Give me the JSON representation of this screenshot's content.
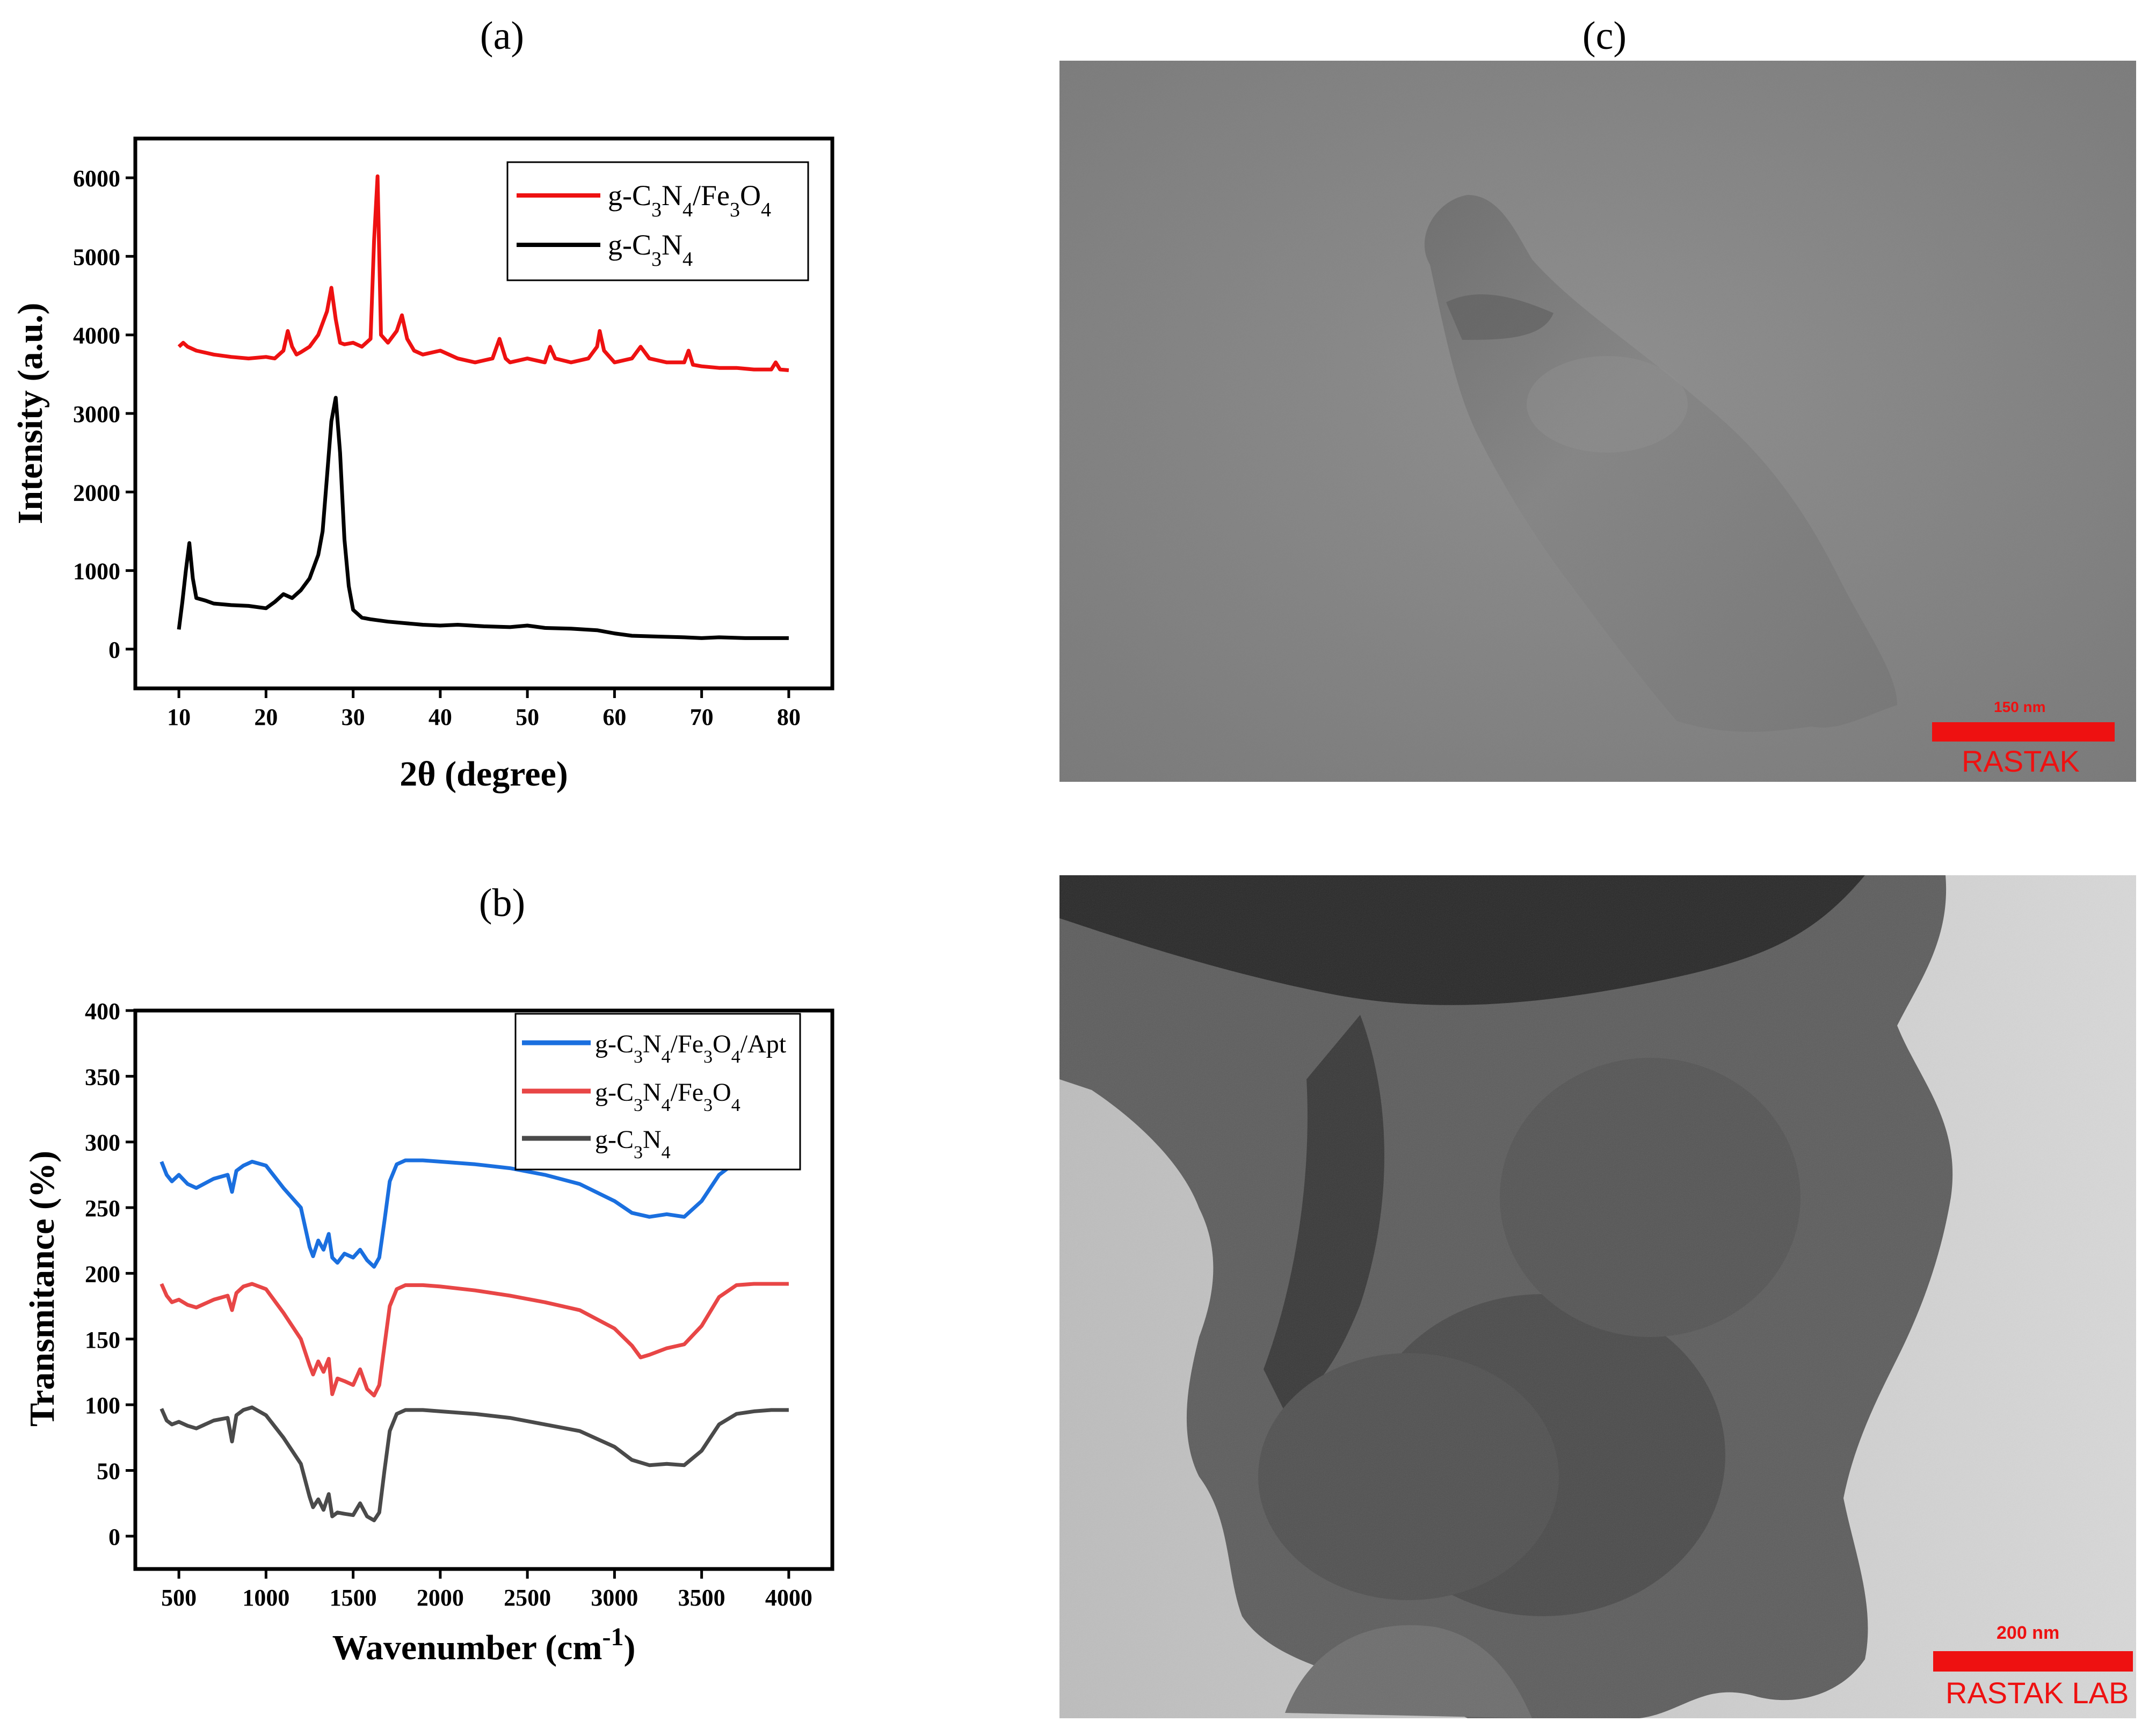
{
  "panels": {
    "a": {
      "label": "(a)"
    },
    "b": {
      "label": "(b)"
    },
    "c": {
      "label": "(c)"
    }
  },
  "chart_data": [
    {
      "type": "line",
      "panel": "(a)",
      "xlabel": "2θ (degree)",
      "ylabel": "Intensity (a.u.)",
      "xlim": [
        5,
        85
      ],
      "ylim": [
        -500,
        6500
      ],
      "xticks": [
        10,
        20,
        30,
        40,
        50,
        60,
        70,
        80
      ],
      "yticks": [
        0,
        1000,
        2000,
        3000,
        4000,
        5000,
        6000
      ],
      "legend_position": "top-right",
      "series": [
        {
          "name": "g-C3N4/Fe3O4",
          "color": "#ee1111",
          "x": [
            10,
            10.5,
            11,
            12,
            14,
            16,
            18,
            20,
            21,
            22,
            22.5,
            23,
            23.5,
            24,
            25,
            26,
            27,
            27.5,
            28,
            28.5,
            29,
            30,
            31,
            32,
            32.4,
            32.8,
            33.2,
            34,
            35,
            35.6,
            36.2,
            37,
            38,
            40,
            42,
            44,
            46,
            46.8,
            47.5,
            48,
            50,
            52,
            52.6,
            53.2,
            55,
            57,
            58,
            58.3,
            58.8,
            60,
            62,
            63,
            64,
            66,
            68,
            68.5,
            69,
            70,
            72,
            74,
            76,
            78,
            78.5,
            79,
            80
          ],
          "y": [
            3850,
            3900,
            3850,
            3800,
            3750,
            3720,
            3700,
            3720,
            3700,
            3800,
            4050,
            3850,
            3750,
            3780,
            3850,
            4000,
            4300,
            4600,
            4200,
            3900,
            3880,
            3900,
            3850,
            3950,
            5200,
            6020,
            4000,
            3900,
            4050,
            4250,
            3950,
            3800,
            3750,
            3800,
            3700,
            3650,
            3700,
            3950,
            3700,
            3650,
            3700,
            3650,
            3850,
            3700,
            3650,
            3700,
            3850,
            4050,
            3800,
            3650,
            3700,
            3850,
            3700,
            3650,
            3650,
            3800,
            3620,
            3600,
            3580,
            3580,
            3560,
            3560,
            3650,
            3560,
            3550
          ]
        },
        {
          "name": "g-C3N4",
          "color": "#000000",
          "x": [
            10,
            10.4,
            10.8,
            11.2,
            11.6,
            12,
            13,
            14,
            16,
            18,
            20,
            21,
            22,
            23,
            24,
            25,
            26,
            26.5,
            27,
            27.5,
            28,
            28.5,
            29,
            29.5,
            30,
            31,
            32,
            34,
            36,
            38,
            40,
            42,
            45,
            48,
            50,
            52,
            55,
            58,
            60,
            62,
            65,
            68,
            70,
            72,
            75,
            78,
            80
          ],
          "y": [
            250,
            600,
            1000,
            1350,
            900,
            650,
            620,
            580,
            560,
            550,
            520,
            600,
            700,
            650,
            750,
            900,
            1200,
            1500,
            2200,
            2900,
            3200,
            2500,
            1400,
            800,
            500,
            400,
            380,
            350,
            330,
            310,
            300,
            310,
            290,
            280,
            300,
            270,
            260,
            240,
            200,
            170,
            160,
            150,
            140,
            150,
            140,
            140,
            140
          ]
        }
      ]
    },
    {
      "type": "line",
      "panel": "(b)",
      "xlabel": "Wavenumber (cm-1)",
      "ylabel": "Transmitance (%)",
      "xlim": [
        250,
        4250
      ],
      "ylim": [
        -25,
        400
      ],
      "xticks": [
        500,
        1000,
        1500,
        2000,
        2500,
        3000,
        3500,
        4000
      ],
      "yticks": [
        0,
        50,
        100,
        150,
        200,
        250,
        300,
        350,
        400
      ],
      "legend_position": "top-right",
      "series": [
        {
          "name": "g-C3N4/Fe3O4/Apt",
          "color": "#1a6fdf",
          "x": [
            400,
            430,
            460,
            500,
            550,
            600,
            700,
            780,
            805,
            830,
            870,
            920,
            1000,
            1100,
            1200,
            1250,
            1270,
            1300,
            1330,
            1360,
            1380,
            1410,
            1450,
            1500,
            1540,
            1580,
            1620,
            1650,
            1680,
            1710,
            1750,
            1800,
            1900,
            2000,
            2200,
            2400,
            2600,
            2800,
            3000,
            3100,
            3200,
            3300,
            3400,
            3500,
            3600,
            3700,
            3800,
            3900,
            4000
          ],
          "y": [
            285,
            275,
            270,
            275,
            268,
            265,
            272,
            275,
            262,
            278,
            282,
            285,
            282,
            265,
            250,
            220,
            213,
            225,
            218,
            230,
            212,
            208,
            215,
            212,
            218,
            210,
            205,
            212,
            240,
            270,
            283,
            286,
            286,
            285,
            283,
            280,
            275,
            268,
            255,
            246,
            243,
            245,
            243,
            255,
            275,
            285,
            287,
            287,
            287
          ]
        },
        {
          "name": "g-C3N4/Fe3O4",
          "color": "#e84646",
          "x": [
            400,
            430,
            460,
            500,
            550,
            600,
            700,
            780,
            805,
            830,
            870,
            920,
            1000,
            1100,
            1200,
            1250,
            1270,
            1300,
            1330,
            1360,
            1380,
            1410,
            1450,
            1500,
            1540,
            1580,
            1620,
            1650,
            1680,
            1710,
            1750,
            1800,
            1900,
            2000,
            2200,
            2400,
            2600,
            2800,
            3000,
            3100,
            3150,
            3200,
            3300,
            3400,
            3500,
            3600,
            3700,
            3800,
            3900,
            4000
          ],
          "y": [
            192,
            183,
            178,
            180,
            176,
            174,
            180,
            183,
            172,
            185,
            190,
            192,
            188,
            170,
            150,
            130,
            123,
            133,
            125,
            135,
            108,
            120,
            118,
            115,
            127,
            112,
            107,
            115,
            145,
            175,
            188,
            191,
            191,
            190,
            187,
            183,
            178,
            172,
            158,
            145,
            136,
            138,
            143,
            146,
            160,
            182,
            191,
            192,
            192,
            192
          ]
        },
        {
          "name": "g-C3N4",
          "color": "#4a4a4a",
          "x": [
            400,
            430,
            460,
            500,
            550,
            600,
            700,
            780,
            805,
            830,
            870,
            920,
            1000,
            1100,
            1200,
            1250,
            1270,
            1300,
            1330,
            1360,
            1380,
            1410,
            1450,
            1500,
            1540,
            1580,
            1620,
            1650,
            1680,
            1710,
            1750,
            1800,
            1900,
            2000,
            2200,
            2400,
            2600,
            2800,
            3000,
            3100,
            3200,
            3300,
            3400,
            3500,
            3600,
            3700,
            3800,
            3900,
            4000
          ],
          "y": [
            97,
            88,
            85,
            87,
            84,
            82,
            88,
            90,
            72,
            92,
            96,
            98,
            92,
            75,
            55,
            30,
            22,
            28,
            20,
            32,
            15,
            18,
            17,
            16,
            25,
            15,
            12,
            18,
            50,
            80,
            93,
            96,
            96,
            95,
            93,
            90,
            85,
            80,
            68,
            58,
            54,
            55,
            54,
            65,
            85,
            93,
            95,
            96,
            96
          ]
        }
      ]
    }
  ],
  "tem_top": {
    "scale_label": "150 nm",
    "watermark": "RASTAK LAB"
  },
  "tem_bottom": {
    "scale_label": "200 nm",
    "watermark": "RASTAK LAB"
  }
}
